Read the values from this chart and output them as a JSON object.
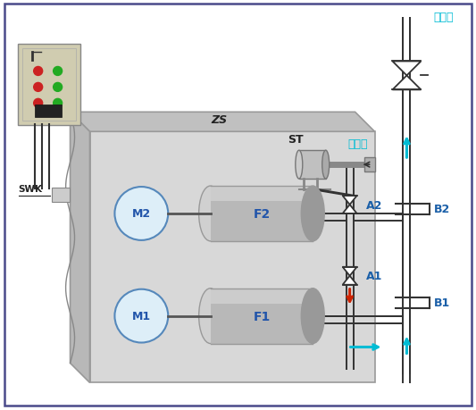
{
  "bg_color": "#ffffff",
  "border_color": "#4a4a8a",
  "cyan": "#00bcd4",
  "red": "#cc2200",
  "dark": "#222222",
  "blue_label": "#1a5fa8",
  "outlet": "出水口",
  "inlet": "进水口",
  "ZS": "ZS",
  "ST": "ST",
  "SWK": "SWK",
  "M1": "M1",
  "M2": "M2",
  "F1": "F1",
  "F2": "F2",
  "A1": "A1",
  "A2": "A2",
  "B1": "B1",
  "B2": "B2",
  "pit_face": "#d8d8d8",
  "pit_top": "#c0c0c0",
  "pit_left": "#b8b8b8",
  "pit_edge": "#999999",
  "motor_fill": "#ddeef8",
  "motor_edge": "#5588bb",
  "motor_text": "#2255aa",
  "cyl_main": "#b8b8b8",
  "cyl_front": "#999999",
  "cyl_back": "#d0d0d0",
  "panel_fill": "#d0ccb0",
  "pipe_color": "#333333"
}
